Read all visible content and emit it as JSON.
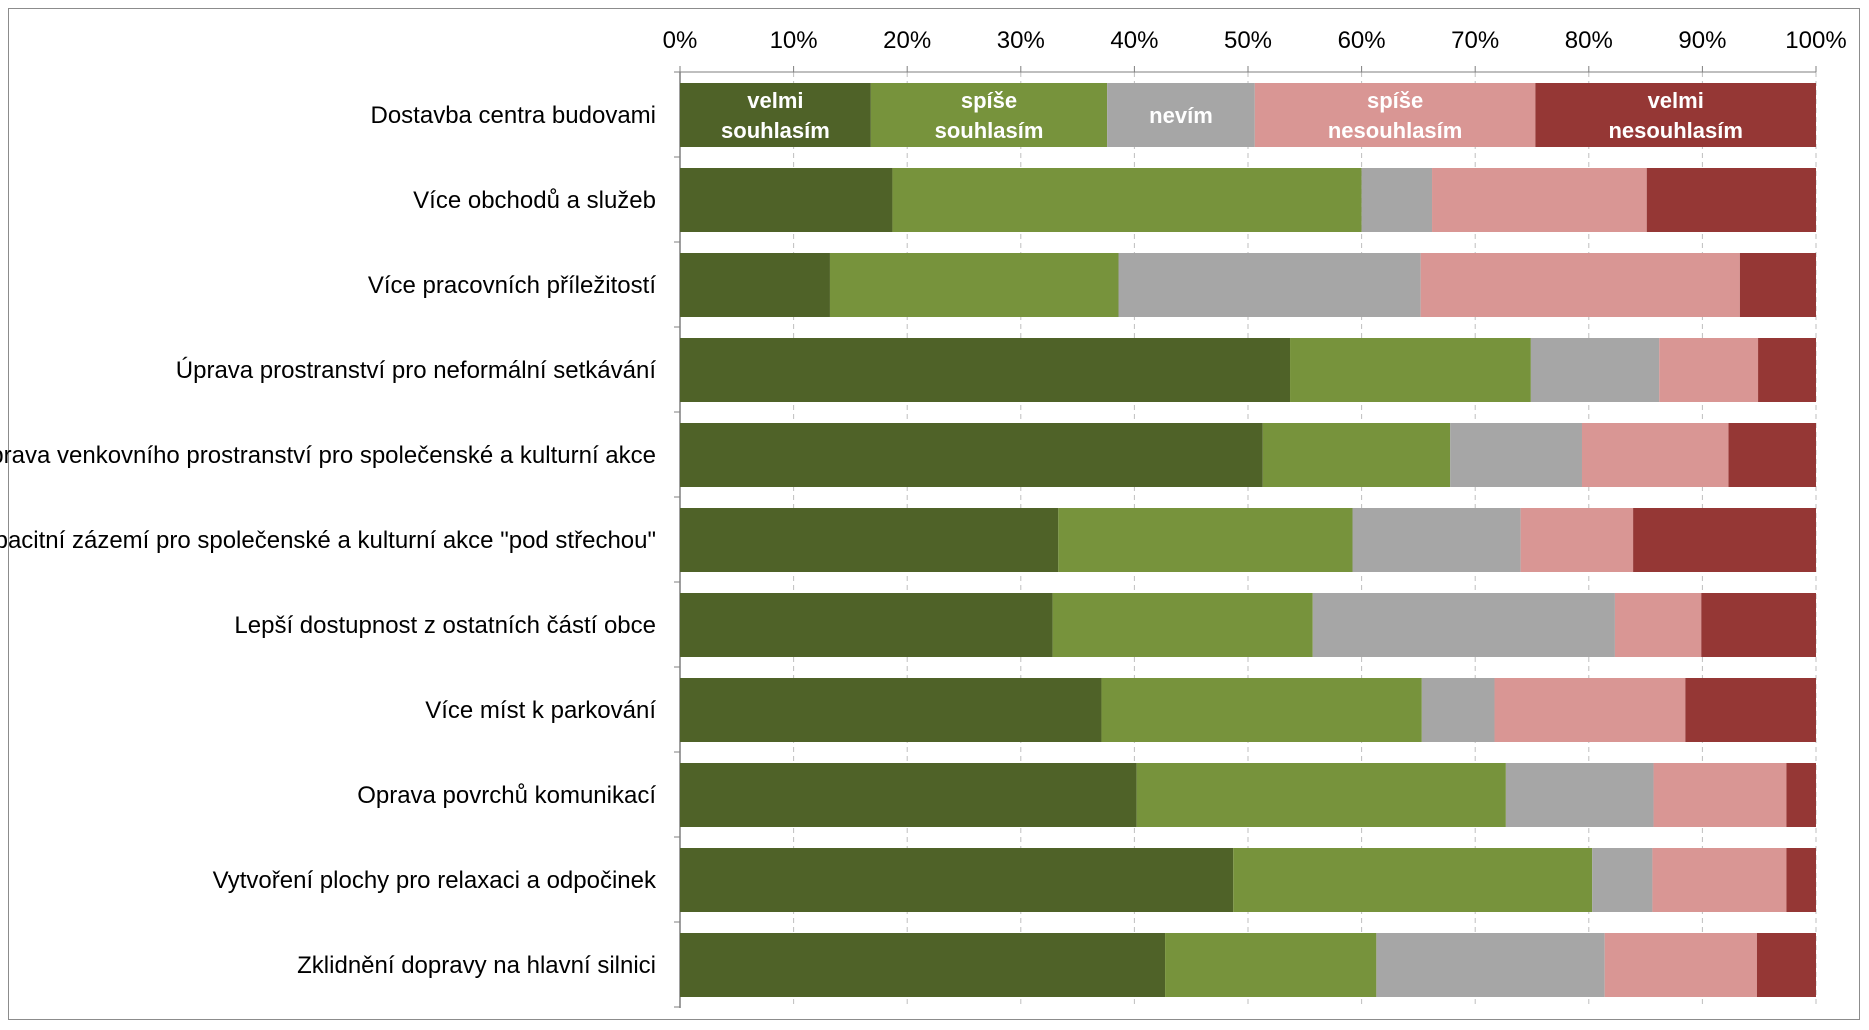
{
  "chart_data": {
    "type": "bar",
    "orientation": "horizontal",
    "stacking": "percent",
    "title": "",
    "xlabel": "",
    "ylabel": "",
    "xlim": [
      0,
      100
    ],
    "x_ticks": [
      "0%",
      "10%",
      "20%",
      "30%",
      "40%",
      "50%",
      "60%",
      "70%",
      "80%",
      "90%",
      "100%"
    ],
    "grid": "vertical dashed",
    "legend": "labels inside first bar",
    "categories": [
      "Dostavba centra budovami",
      "Více obchodů a služeb",
      "Více pracovních příležitostí",
      "Úprava prostranství pro neformální setkávání",
      "Úprava venkovního prostranství pro společenské a kulturní akce",
      "Kapacitní zázemí pro společenské a kulturní akce \"pod střechou\"",
      "Lepší dostupnost z ostatních částí obce",
      "Více míst k parkování",
      "Oprava povrchů komunikací",
      "Vytvoření plochy pro relaxaci a odpočinek",
      "Zklidnění dopravy na hlavní silnici"
    ],
    "series": [
      {
        "name": "velmi souhlasím",
        "label_lines": [
          "velmi",
          "souhlasím"
        ],
        "color": "#4f6228",
        "values": [
          16.8,
          18.7,
          13.2,
          53.7,
          51.3,
          33.3,
          32.8,
          37.1,
          40.2,
          48.7,
          42.7
        ]
      },
      {
        "name": "spíše souhlasím",
        "label_lines": [
          "spíše",
          "souhlasím"
        ],
        "color": "#77933c",
        "values": [
          20.8,
          41.3,
          25.4,
          21.2,
          16.5,
          25.9,
          22.9,
          28.2,
          32.5,
          31.6,
          18.6
        ]
      },
      {
        "name": "nevím",
        "label_lines": [
          "nevím"
        ],
        "color": "#a6a6a6",
        "values": [
          13.0,
          6.2,
          26.6,
          11.3,
          11.6,
          14.8,
          26.6,
          6.4,
          13.0,
          5.3,
          20.1
        ]
      },
      {
        "name": "spíše nesouhlasím",
        "label_lines": [
          "spíše",
          "nesouhlasím"
        ],
        "color": "#d99694",
        "values": [
          24.7,
          18.9,
          28.1,
          8.7,
          12.9,
          9.9,
          7.6,
          16.8,
          11.7,
          11.8,
          13.4
        ]
      },
      {
        "name": "velmi nesouhlasím",
        "label_lines": [
          "velmi",
          "nesouhlasím"
        ],
        "color": "#953735",
        "values": [
          24.7,
          14.9,
          6.7,
          5.1,
          7.7,
          16.1,
          10.1,
          11.5,
          2.6,
          2.6,
          5.2
        ]
      }
    ]
  }
}
